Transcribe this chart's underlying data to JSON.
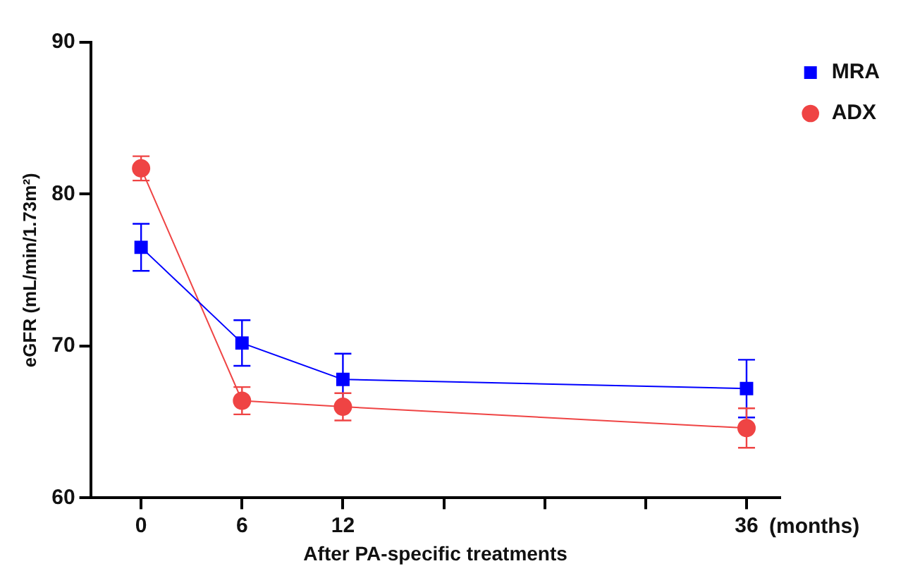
{
  "chart_data": {
    "type": "line",
    "xlabel": "After PA-specific treatments",
    "ylabel": "eGFR (mL/min/1.73m²)",
    "annotations": [
      "(months)"
    ],
    "x": [
      0,
      6,
      12,
      36
    ],
    "xlim": [
      -3,
      38
    ],
    "xticks": [
      0,
      6,
      12,
      {
        "value": 18,
        "label": null
      },
      {
        "value": 24,
        "label": null
      },
      {
        "value": 30,
        "label": null
      },
      36
    ],
    "ylim": [
      60,
      90
    ],
    "yticks": [
      60,
      70,
      80,
      90
    ],
    "grid": false,
    "legend": "top right",
    "line_style": "solid",
    "series": [
      {
        "name": "MRA",
        "color": "#0000ff",
        "marker": "square",
        "values": [
          76.5,
          70.2,
          67.8,
          67.2
        ],
        "errors": [
          1.55,
          1.5,
          1.7,
          1.9
        ]
      },
      {
        "name": "ADX",
        "color": "#ef4444",
        "marker": "circle",
        "values": [
          81.7,
          66.4,
          66.0,
          64.6
        ],
        "errors": [
          0.8,
          0.9,
          0.9,
          1.3
        ]
      }
    ]
  }
}
